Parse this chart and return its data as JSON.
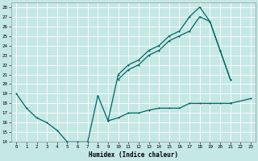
{
  "xlabel": "Humidex (Indice chaleur)",
  "xlim": [
    -0.5,
    23.5
  ],
  "ylim": [
    14,
    28.5
  ],
  "yticks": [
    14,
    15,
    16,
    17,
    18,
    19,
    20,
    21,
    22,
    23,
    24,
    25,
    26,
    27,
    28
  ],
  "xticks": [
    0,
    1,
    2,
    3,
    4,
    5,
    6,
    7,
    8,
    9,
    10,
    11,
    12,
    13,
    14,
    15,
    16,
    17,
    18,
    19,
    20,
    21,
    22,
    23
  ],
  "bg": "#c5e8e4",
  "grid_color": "#ffffff",
  "lc": "#006666",
  "line1_x": [
    0,
    1,
    2,
    3,
    4,
    5,
    6,
    7,
    8,
    9,
    10,
    11,
    12,
    13,
    14,
    15,
    16,
    17,
    18,
    19,
    20,
    21
  ],
  "line1_y": [
    19,
    17.5,
    16.5,
    16,
    15.2,
    14,
    14,
    14,
    18.8,
    16.2,
    21,
    22,
    22.5,
    23.5,
    24,
    25,
    25.5,
    27,
    28,
    26.5,
    23.5,
    20.5
  ],
  "line2_x": [
    9,
    10,
    11,
    12,
    13,
    14,
    15,
    16,
    17,
    18,
    19,
    20,
    21,
    23
  ],
  "line2_y": [
    16.2,
    16.5,
    17,
    17,
    17.3,
    17.5,
    17.5,
    17.5,
    18,
    18,
    18,
    18,
    18,
    18.5
  ],
  "line3_x": [
    10,
    11,
    12,
    13,
    14,
    15,
    16,
    17,
    18,
    19,
    20,
    21
  ],
  "line3_y": [
    20.5,
    21.5,
    22,
    23,
    23.5,
    24.5,
    25,
    25.5,
    27,
    26.5,
    23.5,
    20.5
  ]
}
